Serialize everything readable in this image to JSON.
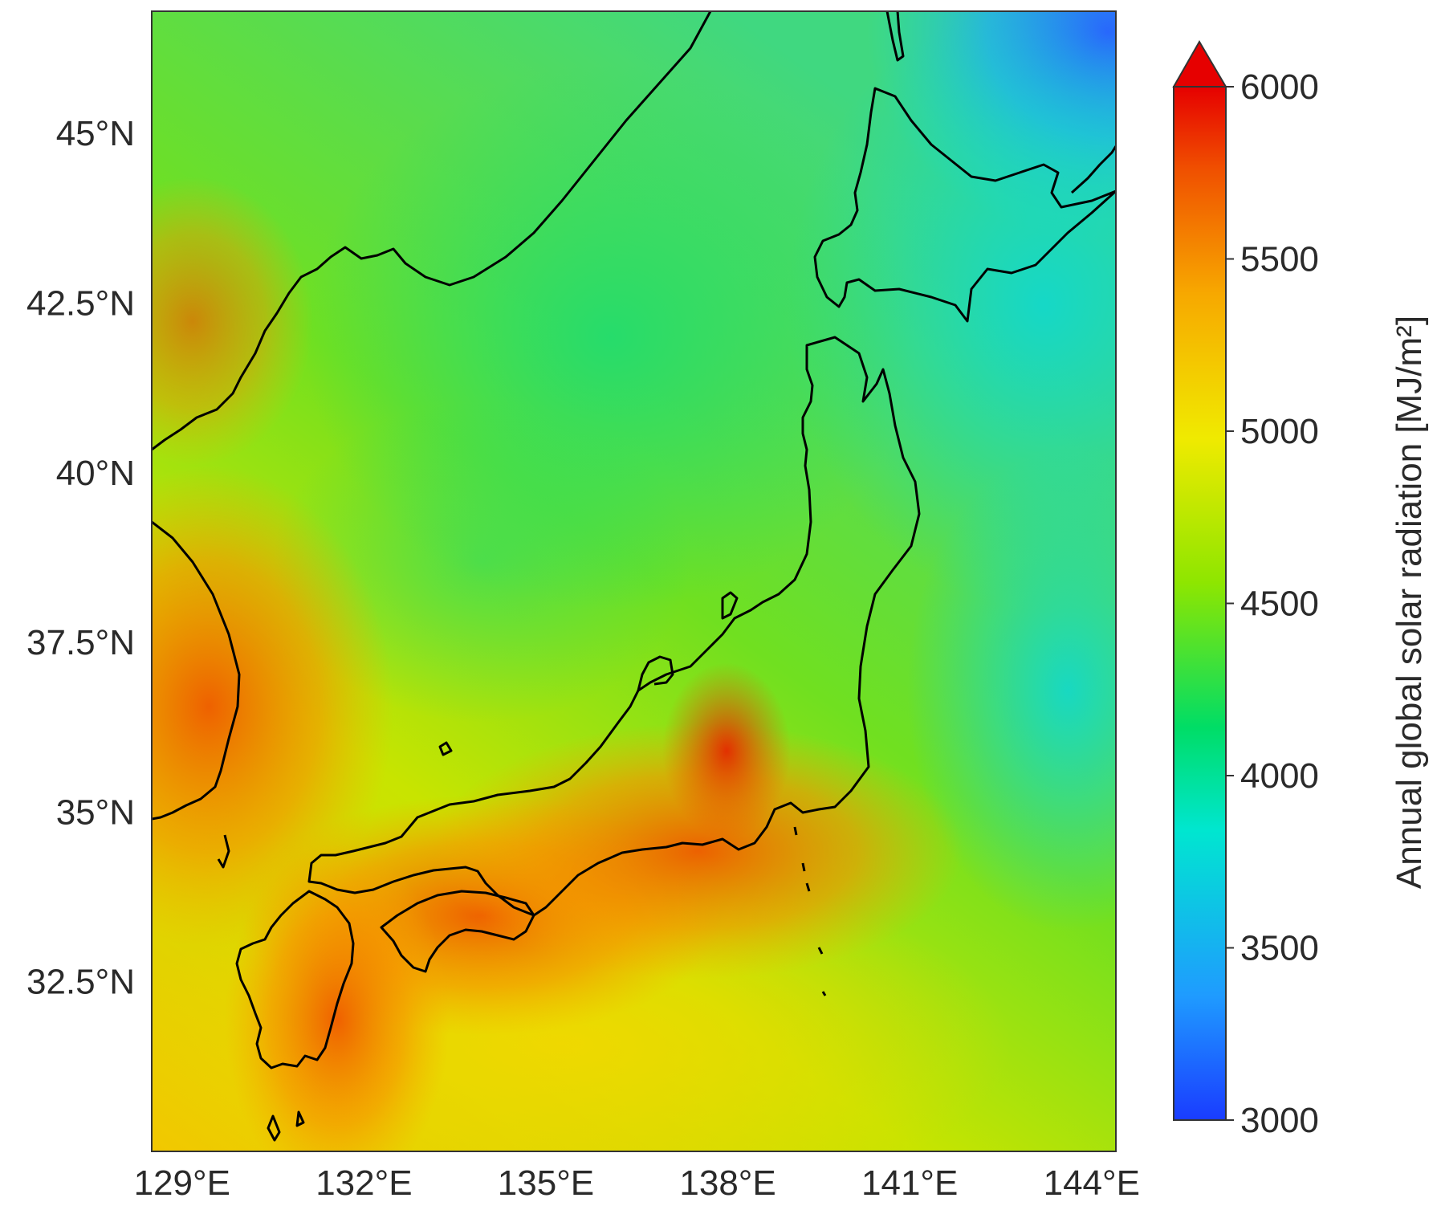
{
  "map": {
    "lat_ticks": [
      {
        "label": "45°N",
        "lat": 45
      },
      {
        "label": "42.5°N",
        "lat": 42.5
      },
      {
        "label": "40°N",
        "lat": 40
      },
      {
        "label": "37.5°N",
        "lat": 37.5
      },
      {
        "label": "35°N",
        "lat": 35
      },
      {
        "label": "32.5°N",
        "lat": 32.5
      }
    ],
    "lon_ticks": [
      {
        "label": "129°E",
        "lon": 129
      },
      {
        "label": "132°E",
        "lon": 132
      },
      {
        "label": "135°E",
        "lon": 135
      },
      {
        "label": "138°E",
        "lon": 138
      },
      {
        "label": "141°E",
        "lon": 141
      },
      {
        "label": "144°E",
        "lon": 144
      }
    ],
    "extent": {
      "lon_min": 128.5,
      "lon_max": 144.4,
      "lat_min": 30.0,
      "lat_max": 46.8
    }
  },
  "colorbar": {
    "title": "Annual global solar radiation [MJ/m²]",
    "ticks": [
      "6000",
      "5500",
      "5000",
      "4500",
      "4000",
      "3500",
      "3000"
    ],
    "range": [
      3000,
      6000
    ],
    "extend": "max",
    "colors": [
      "#1a3cff",
      "#1f9bff",
      "#00e6d0",
      "#00dd66",
      "#8ee600",
      "#f0ea00",
      "#f7a800",
      "#f05000",
      "#e60000"
    ]
  },
  "chart_data": {
    "type": "heatmap",
    "variable": "Annual global solar radiation",
    "unit": "MJ/m²",
    "colorbar_range": [
      3000,
      6000
    ],
    "x_ticks": [
      "129°E",
      "132°E",
      "135°E",
      "138°E",
      "141°E",
      "144°E"
    ],
    "y_ticks": [
      "45°N",
      "42.5°N",
      "40°N",
      "37.5°N",
      "35°N",
      "32.5°N"
    ]
  }
}
